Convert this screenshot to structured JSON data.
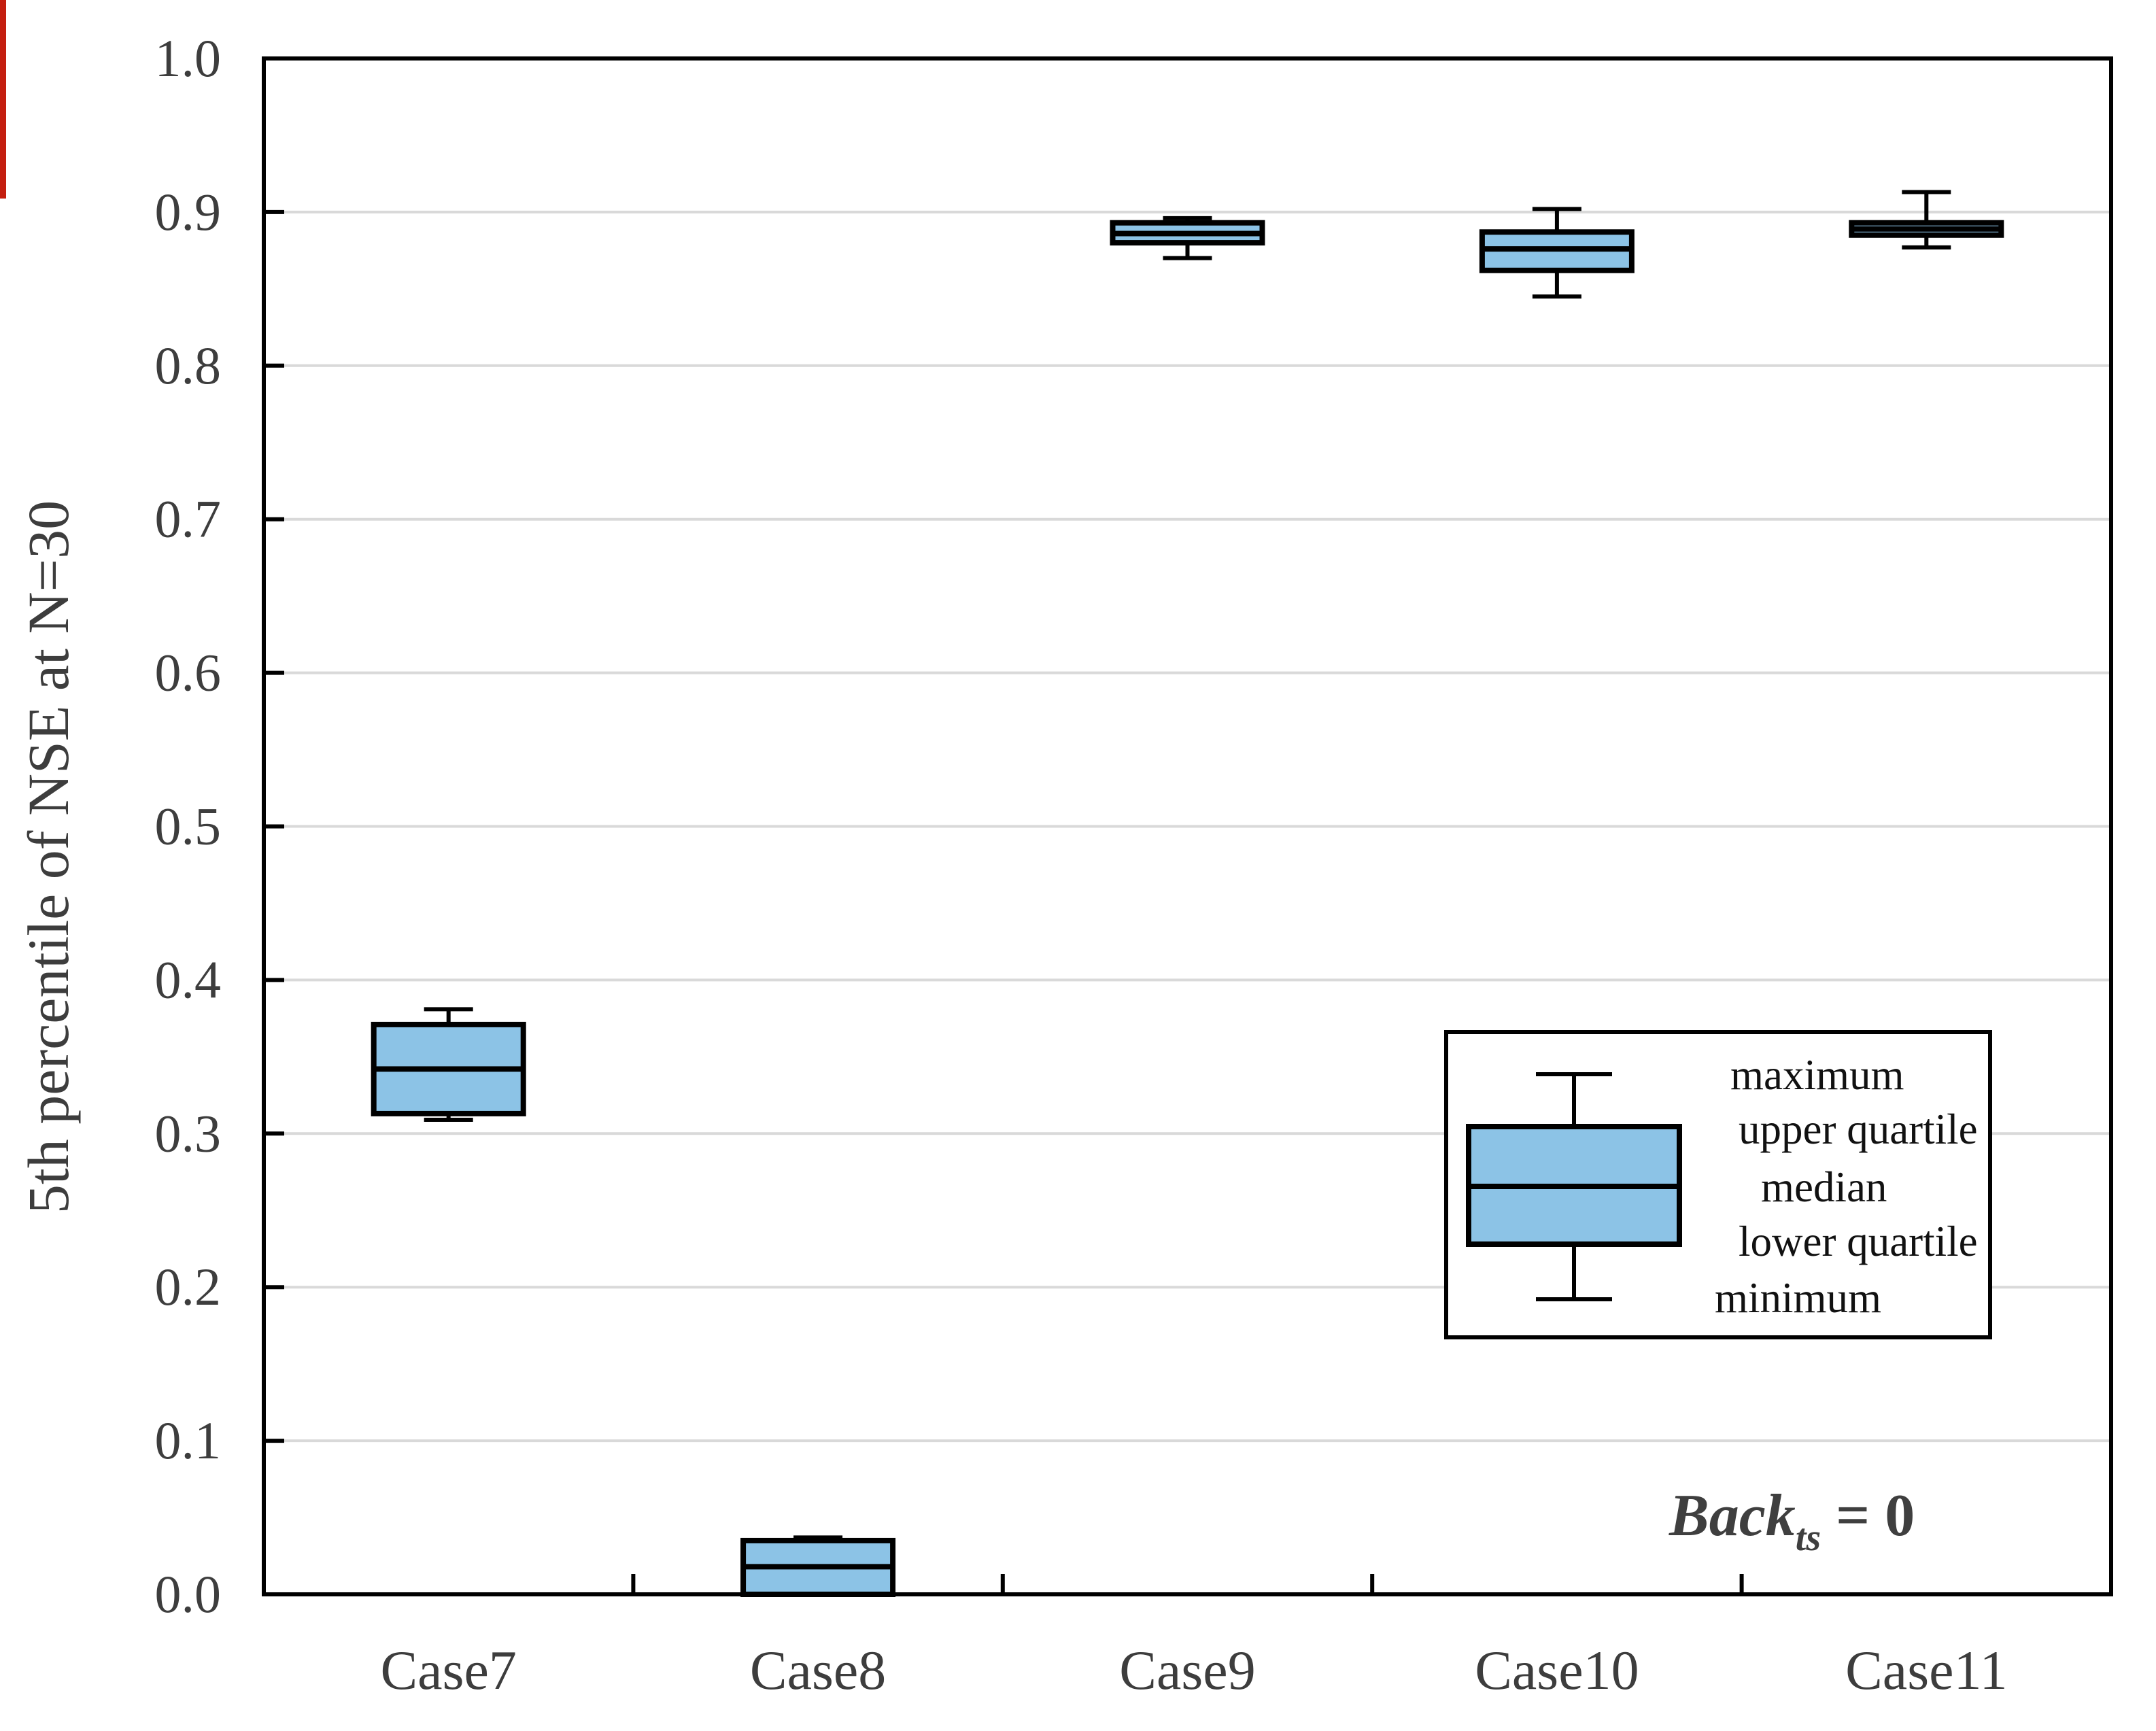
{
  "figure": {
    "background": "#ffffff",
    "artifact_color": "#c41e0f"
  },
  "chart_data": {
    "type": "boxplot",
    "title": "",
    "xlabel": "",
    "ylabel": "5th percentile of NSE at N=30",
    "ylim": [
      0.0,
      1.0
    ],
    "yticks": [
      0.0,
      0.1,
      0.2,
      0.3,
      0.4,
      0.5,
      0.6,
      0.7,
      0.8,
      0.9,
      1.0
    ],
    "ytick_labels": [
      "0.0",
      "0.1",
      "0.2",
      "0.3",
      "0.4",
      "0.5",
      "0.6",
      "0.7",
      "0.8",
      "0.9",
      "1.0"
    ],
    "grid": "horizontal",
    "categories": [
      "Case7",
      "Case8",
      "Case9",
      "Case10",
      "Case11"
    ],
    "series": [
      {
        "name": "Case7",
        "min": 0.309,
        "q1": 0.313,
        "median": 0.342,
        "q3": 0.371,
        "max": 0.381
      },
      {
        "name": "Case8",
        "min": 0.0,
        "q1": 0.0,
        "median": 0.018,
        "q3": 0.035,
        "max": 0.037
      },
      {
        "name": "Case9",
        "min": 0.87,
        "q1": 0.88,
        "median": 0.886,
        "q3": 0.893,
        "max": 0.896
      },
      {
        "name": "Case10",
        "min": 0.845,
        "q1": 0.862,
        "median": 0.876,
        "q3": 0.887,
        "max": 0.902
      },
      {
        "name": "Case11",
        "min": 0.877,
        "q1": 0.885,
        "median": 0.889,
        "q3": 0.893,
        "max": 0.913
      }
    ],
    "colors": {
      "box_fill": "#8CC3E6",
      "line": "#000000",
      "grid": "#D9D9D9",
      "axis_text": "#3d3d3d",
      "legend_text": "#111111",
      "annotation_text": "#3f3f3f"
    },
    "legend": {
      "position": "right-middle",
      "items": [
        "maximum",
        "upper quartile",
        "median",
        "lower quartile",
        "minimum"
      ]
    },
    "annotation": {
      "base": "Back",
      "sub": "ts",
      "rest": " = 0"
    }
  }
}
